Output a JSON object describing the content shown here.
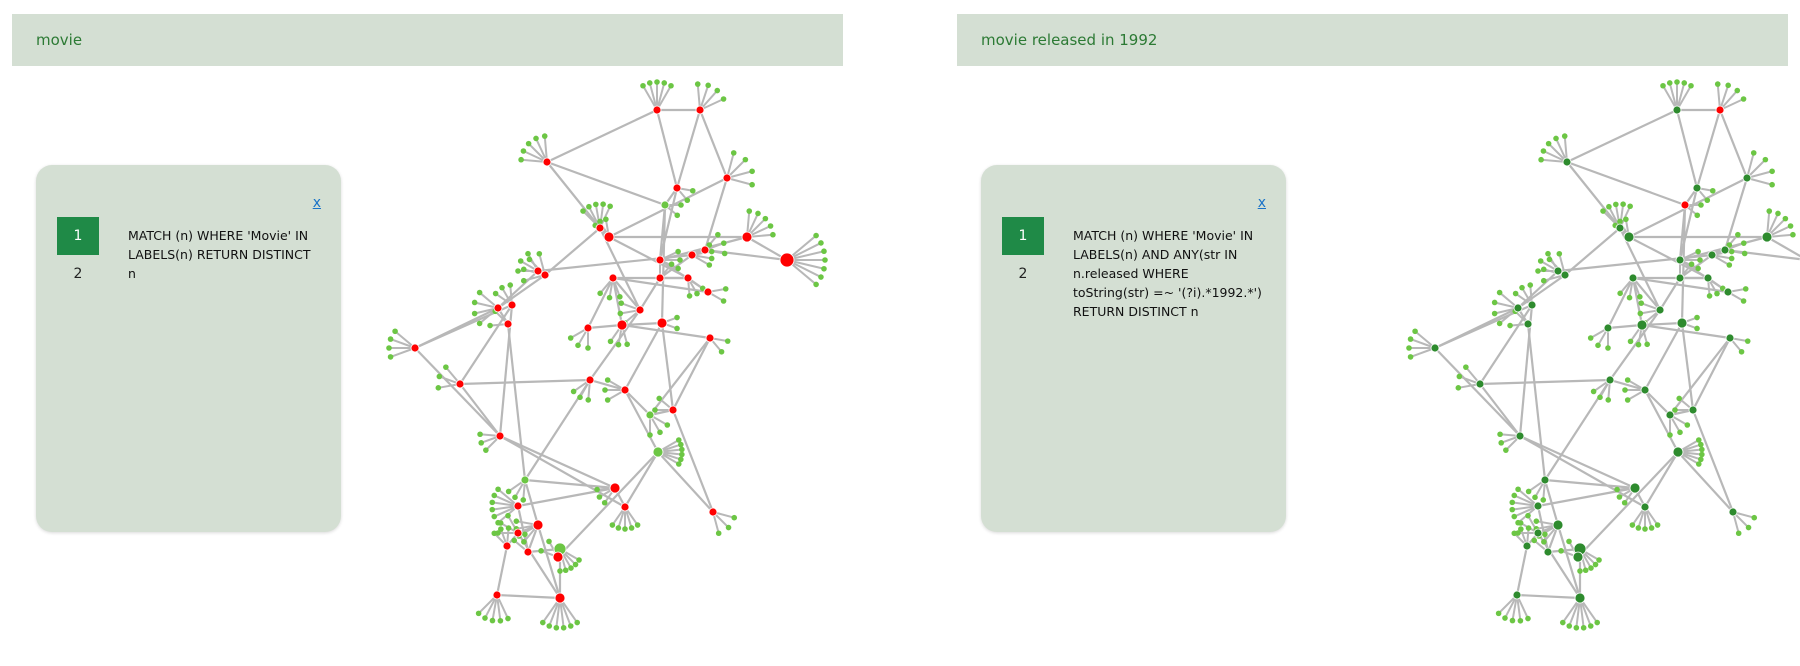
{
  "colors": {
    "header_bg": "#d4dfd3",
    "title_text": "#2c7a34",
    "tab_active": "#1f8a47",
    "edge": "#b8b8b8",
    "node_light_green": "#6cc644",
    "node_red": "#ff0000",
    "node_dark_green": "#2e8b2e"
  },
  "left": {
    "title": "movie",
    "close_label": "x",
    "tabs": [
      "1",
      "2"
    ],
    "query": "MATCH (n) WHERE 'Movie' IN LABELS(n) RETURN DISTINCT n",
    "highlight_color": "red"
  },
  "right": {
    "title": "movie released in 1992",
    "close_label": "x",
    "tabs": [
      "1",
      "2"
    ],
    "query": "MATCH (n) WHERE 'Movie' IN LABELS(n) AND ANY(str IN n.released WHERE toString(str) =~ '(?i).*1992.*') RETURN DISTINCT n",
    "highlight_color": "red"
  }
}
